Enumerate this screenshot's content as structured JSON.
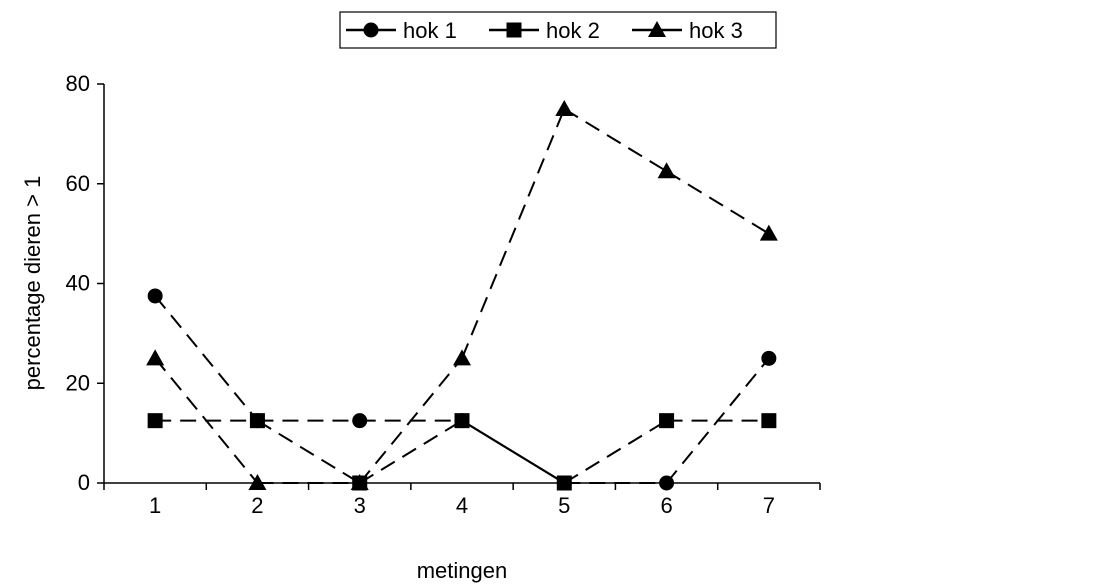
{
  "chart_data": {
    "type": "line",
    "title": "",
    "xlabel": "metingen",
    "ylabel": "percentage dieren > 1",
    "x": [
      1,
      2,
      3,
      4,
      5,
      6,
      7
    ],
    "ylim": [
      0,
      80
    ],
    "yticks": [
      0,
      20,
      40,
      60,
      80
    ],
    "grid": false,
    "legend_position": "top-center",
    "series": [
      {
        "name": "hok 1",
        "marker": "circle",
        "color": "#000000",
        "values": [
          37.5,
          12.5,
          12.5,
          12.5,
          0,
          0,
          25
        ]
      },
      {
        "name": "hok 2",
        "marker": "square",
        "color": "#000000",
        "values": [
          12.5,
          12.5,
          0,
          12.5,
          0,
          12.5,
          12.5
        ]
      },
      {
        "name": "hok 3",
        "marker": "triangle",
        "color": "#000000",
        "values": [
          25,
          0,
          0,
          25,
          75,
          62.5,
          50
        ]
      }
    ],
    "segment_styles": [
      [
        "dash",
        "dash",
        "dash",
        "solid",
        "dash",
        "dash"
      ],
      [
        "dash",
        "dash",
        "dash",
        "solid",
        "dash",
        "dash"
      ],
      [
        "dash",
        "dash",
        "dash",
        "dash",
        "dash",
        "dash"
      ]
    ]
  }
}
